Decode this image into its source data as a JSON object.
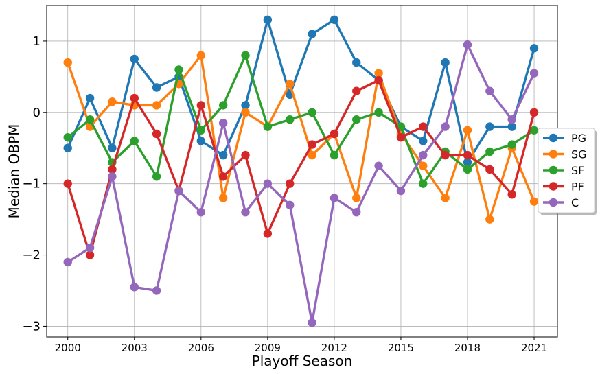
{
  "chart_data": {
    "type": "line",
    "title": "",
    "xlabel": "Playoff Season",
    "ylabel": "Median OBPM",
    "xlim": [
      1999.05,
      2022.05
    ],
    "ylim": [
      -3.15,
      1.5
    ],
    "grid": true,
    "legend_position": "center-right",
    "x_ticks": [
      2000,
      2003,
      2006,
      2009,
      2012,
      2015,
      2018,
      2021
    ],
    "x_tick_labels": [
      "2000",
      "2003",
      "2006",
      "2009",
      "2012",
      "2015",
      "2018",
      "2021"
    ],
    "y_ticks": [
      -3,
      -2,
      -1,
      0,
      1
    ],
    "y_tick_labels": [
      "−3",
      "−2",
      "−1",
      "0",
      "1"
    ],
    "x": [
      2000,
      2001,
      2002,
      2003,
      2004,
      2005,
      2006,
      2007,
      2008,
      2009,
      2010,
      2011,
      2012,
      2013,
      2014,
      2015,
      2016,
      2017,
      2018,
      2019,
      2020,
      2021
    ],
    "series": [
      {
        "name": "PG",
        "color": "#1f77b4",
        "values": [
          -0.5,
          0.2,
          -0.5,
          0.75,
          0.35,
          0.5,
          -0.4,
          -0.6,
          0.1,
          1.3,
          0.25,
          1.1,
          1.3,
          0.7,
          0.45,
          -0.2,
          -0.4,
          0.7,
          -0.7,
          -0.2,
          -0.2,
          0.9
        ]
      },
      {
        "name": "SG",
        "color": "#ff7f0e",
        "values": [
          0.7,
          -0.2,
          0.15,
          0.1,
          0.1,
          0.4,
          0.8,
          -1.2,
          0.0,
          -0.2,
          0.4,
          -0.6,
          -0.3,
          -1.2,
          0.55,
          -0.3,
          -0.75,
          -1.2,
          -0.25,
          -1.5,
          -0.5,
          -1.25
        ]
      },
      {
        "name": "SF",
        "color": "#2ca02c",
        "values": [
          -0.35,
          -0.1,
          -0.7,
          -0.4,
          -0.9,
          0.6,
          -0.25,
          0.1,
          0.8,
          -0.2,
          -0.1,
          0.0,
          -0.6,
          -0.1,
          0.0,
          -0.2,
          -1.0,
          -0.55,
          -0.8,
          -0.55,
          -0.45,
          -0.25
        ]
      },
      {
        "name": "PF",
        "color": "#d62728",
        "values": [
          -1.0,
          -2.0,
          -0.8,
          0.2,
          -0.3,
          -1.1,
          0.1,
          -0.9,
          -0.6,
          -1.7,
          -1.0,
          -0.45,
          -0.3,
          0.3,
          0.45,
          -0.35,
          -0.2,
          -0.6,
          -0.6,
          -0.8,
          -1.15,
          0.0
        ]
      },
      {
        "name": "C",
        "color": "#9467bd",
        "values": [
          -2.1,
          -1.9,
          -0.9,
          -2.45,
          -2.5,
          -1.1,
          -1.4,
          -0.15,
          -1.4,
          -1.0,
          -1.3,
          -2.95,
          -1.2,
          -1.4,
          -0.75,
          -1.1,
          -0.6,
          -0.2,
          0.95,
          0.3,
          -0.1,
          0.55
        ]
      }
    ]
  }
}
